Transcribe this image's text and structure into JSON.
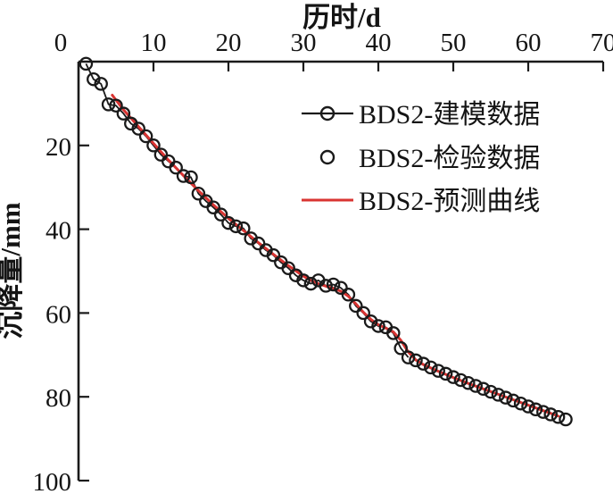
{
  "figure": {
    "background": "#ffffff"
  },
  "colors": {
    "axis": "#1a1a1a",
    "modeling_series": "#1a1a1a",
    "validation_series": "#1a1a1a",
    "prediction_series": "#d93432",
    "text": "#141414"
  },
  "chart_data": {
    "type": "line",
    "title": "历时/d",
    "xlabel": "历时/d",
    "ylabel": "沉降量/mm",
    "x_axis": {
      "position": "top",
      "min": 0,
      "max": 70,
      "ticks": [
        0,
        10,
        20,
        30,
        40,
        50,
        60,
        70
      ]
    },
    "y_axis": {
      "position": "left",
      "min": 0,
      "max": 100,
      "inverted": true,
      "ticks": [
        20,
        40,
        60,
        80,
        100
      ]
    },
    "grid": false,
    "legend_position": "inside-upper-right",
    "series": [
      {
        "name": "BDS2-建模数据",
        "style": "line+marker",
        "marker": "open-circle",
        "color": "#1a1a1a",
        "x": [
          1,
          2,
          3,
          4,
          5,
          6,
          7,
          8,
          9,
          10,
          11,
          12,
          13,
          14,
          15,
          16,
          17,
          18,
          19,
          20,
          21,
          22,
          23,
          24,
          25,
          26,
          27,
          28,
          29,
          30,
          31,
          32,
          33,
          34,
          35,
          36,
          37,
          38,
          39,
          40,
          41,
          42,
          43,
          44
        ],
        "y": [
          0.5,
          4.2,
          5.3,
          10.2,
          10.5,
          12.4,
          14.8,
          16.0,
          17.8,
          20.0,
          22.2,
          23.8,
          25.3,
          27.3,
          27.6,
          31.5,
          33.3,
          34.8,
          36.5,
          38.5,
          39.3,
          39.8,
          42.2,
          43.4,
          45.0,
          46.2,
          47.9,
          49.3,
          51.0,
          52.2,
          53.0,
          52.2,
          53.5,
          53.2,
          54.0,
          55.6,
          58.3,
          60.0,
          62.0,
          63.1,
          63.4,
          64.8,
          68.4,
          70.6
        ]
      },
      {
        "name": "BDS2-检验数据",
        "style": "marker",
        "marker": "open-circle",
        "color": "#1a1a1a",
        "x": [
          45,
          46,
          47,
          48,
          49,
          50,
          51,
          52,
          53,
          54,
          55,
          56,
          57,
          58,
          59,
          60,
          61,
          62,
          63,
          64,
          65
        ],
        "y": [
          71.3,
          72.1,
          73.0,
          73.8,
          74.5,
          75.3,
          76.0,
          76.7,
          77.4,
          78.1,
          78.8,
          79.5,
          80.2,
          80.9,
          81.6,
          82.3,
          83.0,
          83.6,
          84.2,
          84.8,
          85.4
        ]
      },
      {
        "name": "BDS2-预测曲线",
        "style": "line",
        "marker": "none",
        "color": "#d93432",
        "x": [
          4.5,
          6,
          8,
          10,
          12,
          14,
          16,
          18,
          20,
          22,
          24,
          26,
          28,
          30,
          31,
          32,
          33,
          34,
          35,
          36,
          37,
          38,
          39,
          40,
          41,
          42,
          43,
          44,
          45,
          46,
          48,
          50,
          52,
          54,
          56,
          58,
          60,
          62,
          64
        ],
        "y": [
          8.0,
          11.5,
          15.5,
          19.5,
          23.5,
          27.2,
          30.8,
          34.2,
          37.4,
          40.3,
          43.2,
          46.0,
          48.7,
          51.2,
          52.2,
          53.0,
          53.6,
          54.1,
          54.8,
          56.0,
          57.8,
          59.8,
          61.5,
          62.8,
          63.6,
          64.5,
          66.5,
          69.3,
          71.2,
          72.3,
          73.9,
          75.4,
          76.8,
          78.1,
          79.4,
          80.7,
          82.0,
          83.3,
          84.6
        ]
      }
    ]
  }
}
